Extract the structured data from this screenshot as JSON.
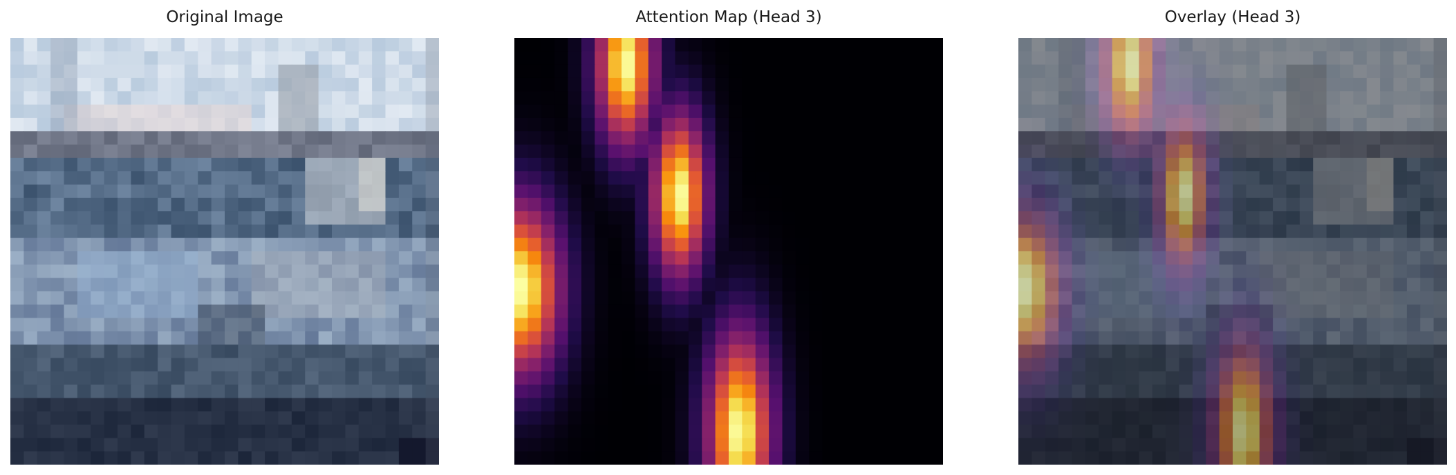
{
  "panels": [
    {
      "id": "original",
      "title": "Original Image",
      "icon": "photo-icon"
    },
    {
      "id": "attention",
      "title": "Attention Map (Head 3)",
      "icon": "heatmap-icon"
    },
    {
      "id": "overlay",
      "title": "Overlay (Head 3)",
      "icon": "overlay-icon"
    }
  ],
  "colors": {
    "background": "#ffffff",
    "title_text": "#1a1a1a",
    "attention_black": "#000004",
    "attention_purple": "#56106e",
    "attention_red": "#bb3754",
    "attention_orange": "#f98e09",
    "attention_yellow": "#fcffa4"
  }
}
